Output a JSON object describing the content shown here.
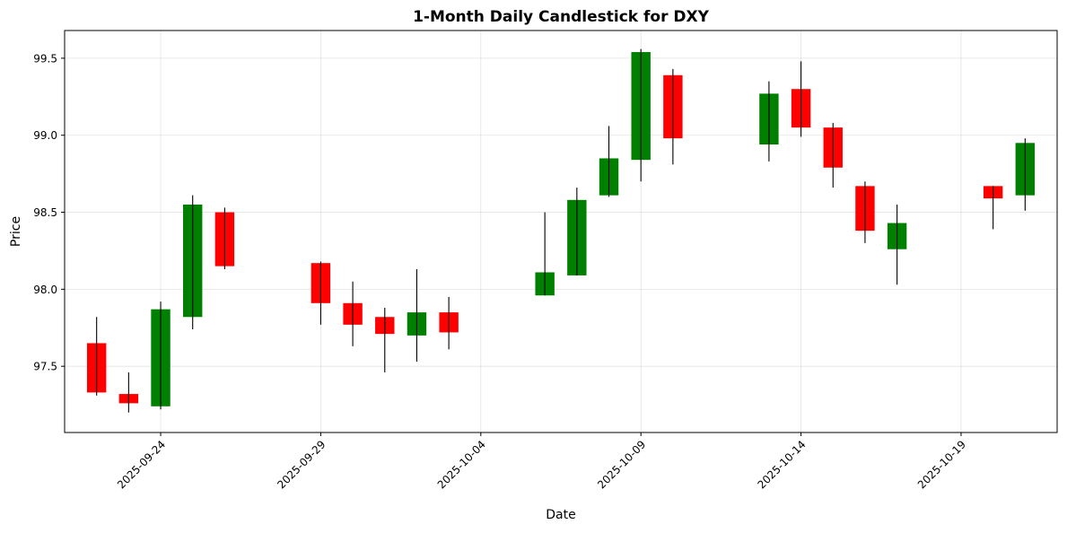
{
  "chart_data": {
    "type": "candlestick",
    "title": "1-Month Daily Candlestick for DXY",
    "xlabel": "Date",
    "ylabel": "Price",
    "grid": true,
    "legend": "none",
    "colors": {
      "up": "#008000",
      "down": "#ff0000",
      "wick": "#000000"
    },
    "x_range": [
      "2025-09-21",
      "2025-10-22"
    ],
    "ylim": [
      97.07,
      99.68
    ],
    "x_ticks": [
      "2025-09-24",
      "2025-09-29",
      "2025-10-04",
      "2025-10-09",
      "2025-10-14",
      "2025-10-19"
    ],
    "y_ticks": [
      97.5,
      98.0,
      98.5,
      99.0,
      99.5
    ],
    "y_tick_labels": [
      "97.5",
      "98.0",
      "98.5",
      "99.0",
      "99.5"
    ],
    "candles": [
      {
        "date": "2025-09-22",
        "open": 97.65,
        "high": 97.82,
        "low": 97.31,
        "close": 97.33
      },
      {
        "date": "2025-09-23",
        "open": 97.32,
        "high": 97.46,
        "low": 97.2,
        "close": 97.26
      },
      {
        "date": "2025-09-24",
        "open": 97.24,
        "high": 97.92,
        "low": 97.22,
        "close": 97.87
      },
      {
        "date": "2025-09-25",
        "open": 97.82,
        "high": 98.61,
        "low": 97.74,
        "close": 98.55
      },
      {
        "date": "2025-09-26",
        "open": 98.5,
        "high": 98.53,
        "low": 98.13,
        "close": 98.15
      },
      {
        "date": "2025-09-29",
        "open": 98.17,
        "high": 98.18,
        "low": 97.77,
        "close": 97.91
      },
      {
        "date": "2025-09-30",
        "open": 97.91,
        "high": 98.05,
        "low": 97.63,
        "close": 97.77
      },
      {
        "date": "2025-10-01",
        "open": 97.82,
        "high": 97.88,
        "low": 97.46,
        "close": 97.71
      },
      {
        "date": "2025-10-02",
        "open": 97.7,
        "high": 98.13,
        "low": 97.53,
        "close": 97.85
      },
      {
        "date": "2025-10-03",
        "open": 97.85,
        "high": 97.95,
        "low": 97.61,
        "close": 97.72
      },
      {
        "date": "2025-10-06",
        "open": 97.96,
        "high": 98.5,
        "low": 97.96,
        "close": 98.11
      },
      {
        "date": "2025-10-07",
        "open": 98.09,
        "high": 98.66,
        "low": 98.09,
        "close": 98.58
      },
      {
        "date": "2025-10-08",
        "open": 98.61,
        "high": 99.06,
        "low": 98.6,
        "close": 98.85
      },
      {
        "date": "2025-10-09",
        "open": 98.84,
        "high": 99.56,
        "low": 98.7,
        "close": 99.54
      },
      {
        "date": "2025-10-10",
        "open": 99.39,
        "high": 99.43,
        "low": 98.81,
        "close": 98.98
      },
      {
        "date": "2025-10-13",
        "open": 98.94,
        "high": 99.35,
        "low": 98.83,
        "close": 99.27
      },
      {
        "date": "2025-10-14",
        "open": 99.3,
        "high": 99.48,
        "low": 98.99,
        "close": 99.05
      },
      {
        "date": "2025-10-15",
        "open": 99.05,
        "high": 99.08,
        "low": 98.66,
        "close": 98.79
      },
      {
        "date": "2025-10-16",
        "open": 98.67,
        "high": 98.7,
        "low": 98.3,
        "close": 98.38
      },
      {
        "date": "2025-10-17",
        "open": 98.26,
        "high": 98.55,
        "low": 98.03,
        "close": 98.43
      },
      {
        "date": "2025-10-20",
        "open": 98.67,
        "high": 98.67,
        "low": 98.39,
        "close": 98.59
      },
      {
        "date": "2025-10-21",
        "open": 98.61,
        "high": 98.98,
        "low": 98.51,
        "close": 98.95
      }
    ]
  }
}
